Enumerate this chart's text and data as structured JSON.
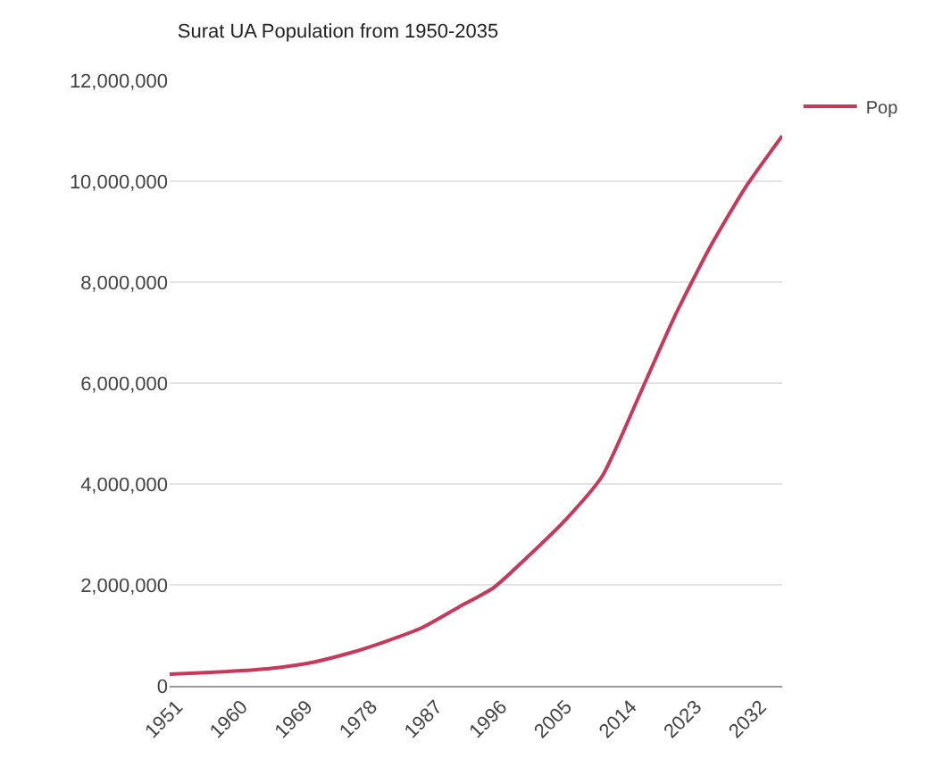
{
  "chart_data": {
    "type": "line",
    "title": "Surat UA Population from 1950-2035",
    "x": [
      1950,
      1955,
      1960,
      1965,
      1970,
      1975,
      1980,
      1985,
      1990,
      1995,
      2000,
      2005,
      2010,
      2015,
      2020,
      2025,
      2030,
      2035
    ],
    "series": [
      {
        "name": "Pop",
        "color": "#c8385a",
        "values": [
          230000,
          260000,
          300000,
          360000,
          470000,
          650000,
          880000,
          1150000,
          1550000,
          1950000,
          2600000,
          3300000,
          4150000,
          5700000,
          7300000,
          8700000,
          9900000,
          10900000
        ]
      }
    ],
    "xlim": [
      1950,
      2035
    ],
    "xticks": [
      1951,
      1960,
      1969,
      1978,
      1987,
      1996,
      2005,
      2014,
      2023,
      2032
    ],
    "ylim": [
      0,
      12000000
    ],
    "yticks": [
      {
        "value": 0,
        "label": "0"
      },
      {
        "value": 2000000,
        "label": "2,000,000"
      },
      {
        "value": 4000000,
        "label": "4,000,000"
      },
      {
        "value": 6000000,
        "label": "6,000,000"
      },
      {
        "value": 8000000,
        "label": "8,000,000"
      },
      {
        "value": 10000000,
        "label": "10,000,000"
      },
      {
        "value": 12000000,
        "label": "12,000,000"
      }
    ],
    "grid": "y",
    "legend": "top right",
    "marker": "none",
    "line_style": "solid"
  }
}
